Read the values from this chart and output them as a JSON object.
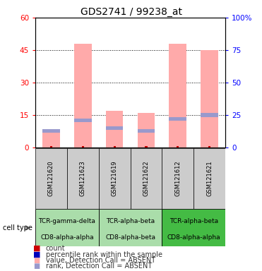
{
  "title": "GDS2741 / 99238_at",
  "samples": [
    "GSM121620",
    "GSM121623",
    "GSM121619",
    "GSM121622",
    "GSM121612",
    "GSM121621"
  ],
  "pink_values": [
    8,
    48,
    17,
    16,
    48,
    45
  ],
  "blue_rank_values": [
    13,
    21,
    15,
    13,
    22,
    25
  ],
  "left_ylim": [
    0,
    60
  ],
  "right_ylim": [
    0,
    100
  ],
  "left_yticks": [
    0,
    15,
    30,
    45,
    60
  ],
  "right_yticks": [
    0,
    25,
    50,
    75,
    100
  ],
  "right_yticklabels": [
    "0",
    "25",
    "50",
    "75",
    "100%"
  ],
  "cell_type_groups": [
    {
      "samples": [
        0,
        1
      ],
      "line1": "TCR-gamma-delta",
      "line2": "CD8-alpha-alpha",
      "color": "#aaddaa"
    },
    {
      "samples": [
        2,
        3
      ],
      "line1": "TCR-alpha-beta",
      "line2": "CD8-alpha-beta",
      "color": "#aaddaa"
    },
    {
      "samples": [
        4,
        5
      ],
      "line1": "TCR-alpha-beta",
      "line2": "CD8-alpha-alpha",
      "color": "#44bb44"
    }
  ],
  "color_pink": "#ffaaaa",
  "color_blue_rank": "#9999cc",
  "color_count": "#cc0000",
  "color_percentile": "#0000bb",
  "gray_bg": "#cccccc",
  "title_fontsize": 10,
  "tick_fontsize": 7.5,
  "sample_fontsize": 6,
  "cell_fontsize": 6.5,
  "legend_fontsize": 7
}
